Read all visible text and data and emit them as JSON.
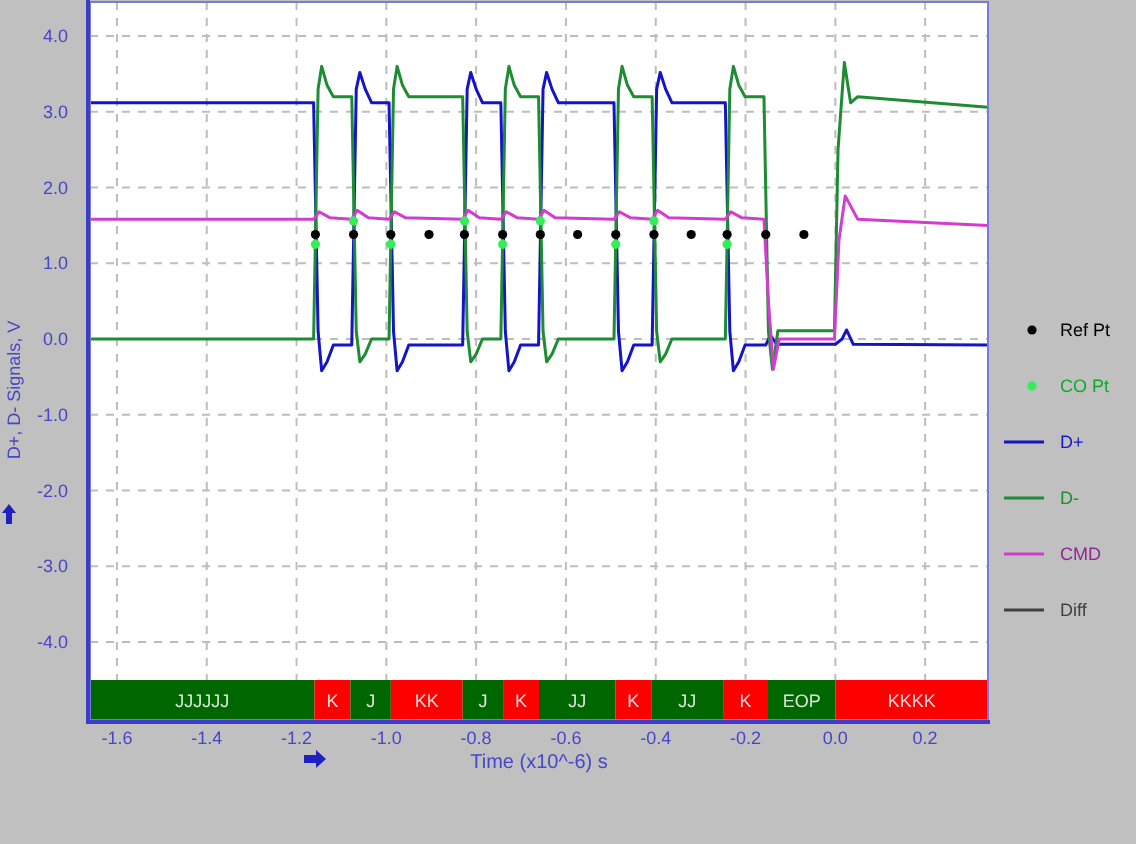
{
  "chart_data": {
    "type": "line",
    "xlabel": "Time (x10^-6) s",
    "ylabel": "D+, D- Signals, V",
    "xlim": [
      -1.66,
      0.34
    ],
    "ylim": [
      -5.03,
      4.45
    ],
    "xticks": [
      -1.6,
      -1.4,
      -1.2,
      {
        "value": -1,
        "label": "-1.0"
      },
      -0.8,
      -0.6,
      -0.4,
      -0.2,
      {
        "value": 0,
        "label": "0.0"
      },
      0.2
    ],
    "yticks": [
      {
        "value": 4,
        "label": "4.0"
      },
      {
        "value": 3,
        "label": "3.0"
      },
      {
        "value": 2,
        "label": "2.0"
      },
      {
        "value": 1,
        "label": "1.0"
      },
      {
        "value": 0,
        "label": "0.0"
      },
      {
        "value": -1,
        "label": "-1.0"
      },
      {
        "value": -2,
        "label": "-2.0"
      },
      {
        "value": -3,
        "label": "-3.0"
      },
      {
        "value": -4,
        "label": "-4.0"
      }
    ],
    "grid": true,
    "legend": "right",
    "bands": [
      {
        "axis": "x",
        "from": -1.66,
        "to": -1.16,
        "label": "JJJJJJ",
        "color": "#006600"
      },
      {
        "axis": "x",
        "from": -1.16,
        "to": -1.08,
        "label": "K",
        "color": "#ff0000"
      },
      {
        "axis": "x",
        "from": -1.08,
        "to": -0.99,
        "label": "J",
        "color": "#006600"
      },
      {
        "axis": "x",
        "from": -0.99,
        "to": -0.83,
        "label": "KK",
        "color": "#ff0000"
      },
      {
        "axis": "x",
        "from": -0.83,
        "to": -0.74,
        "label": "J",
        "color": "#006600"
      },
      {
        "axis": "x",
        "from": -0.74,
        "to": -0.66,
        "label": "K",
        "color": "#ff0000"
      },
      {
        "axis": "x",
        "from": -0.66,
        "to": -0.49,
        "label": "JJ",
        "color": "#006600"
      },
      {
        "axis": "x",
        "from": -0.49,
        "to": -0.41,
        "label": "K",
        "color": "#ff0000"
      },
      {
        "axis": "x",
        "from": -0.41,
        "to": -0.25,
        "label": "JJ",
        "color": "#006600"
      },
      {
        "axis": "x",
        "from": -0.25,
        "to": -0.15,
        "label": "K",
        "color": "#ff0000"
      },
      {
        "axis": "x",
        "from": -0.15,
        "to": 0.0,
        "label": "EOP",
        "color": "#006600"
      },
      {
        "axis": "x",
        "from": 0.0,
        "to": 0.34,
        "label": "KKKK",
        "color": "#ff0000"
      }
    ],
    "series": [
      {
        "name": "Ref Pt",
        "type": "scatter",
        "marker": "circle",
        "color": "#000000",
        "x": [
          -1.158,
          -1.073,
          -0.99,
          -0.905,
          -0.826,
          -0.741,
          -0.657,
          -0.574,
          -0.489,
          -0.404,
          -0.321,
          -0.241,
          -0.155,
          -0.07
        ],
        "values": [
          1.38,
          1.38,
          1.38,
          1.38,
          1.38,
          1.38,
          1.38,
          1.38,
          1.38,
          1.38,
          1.38,
          1.38,
          1.38,
          1.38
        ]
      },
      {
        "name": "CO Pt",
        "type": "scatter",
        "marker": "circle",
        "color": "#33ee55",
        "x": [
          -1.158,
          -1.073,
          -0.99,
          -0.826,
          -0.741,
          -0.657,
          -0.489,
          -0.404,
          -0.241
        ],
        "values": [
          1.25,
          1.56,
          1.25,
          1.56,
          1.25,
          1.56,
          1.25,
          1.56,
          1.25
        ]
      },
      {
        "name": "D+",
        "color": "#1414c8",
        "x": [
          -1.66,
          -1.162,
          -1.152,
          -1.144,
          -1.132,
          -1.118,
          -1.077,
          -1.067,
          -1.059,
          -1.047,
          -1.033,
          -0.994,
          -0.984,
          -0.976,
          -0.964,
          -0.95,
          -0.83,
          -0.82,
          -0.812,
          -0.8,
          -0.786,
          -0.745,
          -0.735,
          -0.727,
          -0.715,
          -0.701,
          -0.661,
          -0.651,
          -0.643,
          -0.631,
          -0.617,
          -0.493,
          -0.483,
          -0.475,
          -0.463,
          -0.449,
          -0.408,
          -0.398,
          -0.39,
          -0.378,
          -0.364,
          -0.245,
          -0.235,
          -0.227,
          -0.215,
          -0.201,
          -0.155,
          -0.145,
          -0.13,
          0.0,
          0.015,
          0.025,
          0.04,
          0.34
        ],
        "values": [
          3.12,
          3.12,
          0.1,
          -0.42,
          -0.3,
          -0.08,
          -0.08,
          3.3,
          3.52,
          3.3,
          3.12,
          3.12,
          0.1,
          -0.42,
          -0.3,
          -0.08,
          -0.08,
          3.3,
          3.52,
          3.3,
          3.12,
          3.12,
          0.1,
          -0.42,
          -0.3,
          -0.08,
          -0.08,
          3.3,
          3.52,
          3.3,
          3.12,
          3.12,
          0.1,
          -0.42,
          -0.3,
          -0.08,
          -0.08,
          3.3,
          3.52,
          3.3,
          3.12,
          3.12,
          0.1,
          -0.42,
          -0.3,
          -0.08,
          -0.08,
          0.05,
          -0.07,
          -0.07,
          0.0,
          0.12,
          -0.07,
          -0.08
        ]
      },
      {
        "name": "D-",
        "color": "#1e8c32",
        "x": [
          -1.66,
          -1.162,
          -1.152,
          -1.144,
          -1.132,
          -1.118,
          -1.077,
          -1.067,
          -1.059,
          -1.047,
          -1.033,
          -0.994,
          -0.984,
          -0.976,
          -0.964,
          -0.95,
          -0.83,
          -0.82,
          -0.812,
          -0.8,
          -0.786,
          -0.745,
          -0.735,
          -0.727,
          -0.715,
          -0.701,
          -0.661,
          -0.651,
          -0.643,
          -0.631,
          -0.617,
          -0.493,
          -0.483,
          -0.475,
          -0.463,
          -0.449,
          -0.408,
          -0.398,
          -0.39,
          -0.378,
          -0.364,
          -0.245,
          -0.235,
          -0.227,
          -0.215,
          -0.201,
          -0.159,
          -0.149,
          -0.14,
          -0.128,
          -0.002,
          0.006,
          0.02,
          0.034,
          0.05,
          0.34
        ],
        "values": [
          0.0,
          0.0,
          3.3,
          3.6,
          3.35,
          3.2,
          3.2,
          0.1,
          -0.3,
          -0.2,
          0.0,
          0.0,
          3.3,
          3.6,
          3.35,
          3.2,
          3.2,
          0.1,
          -0.3,
          -0.2,
          0.0,
          0.0,
          3.3,
          3.6,
          3.35,
          3.2,
          3.2,
          0.1,
          -0.3,
          -0.2,
          0.0,
          0.0,
          3.3,
          3.6,
          3.35,
          3.2,
          3.2,
          0.1,
          -0.3,
          -0.2,
          0.0,
          0.0,
          3.3,
          3.6,
          3.35,
          3.2,
          3.2,
          0.1,
          -0.4,
          0.11,
          0.11,
          2.5,
          3.65,
          3.12,
          3.2,
          3.06
        ]
      },
      {
        "name": "CMD",
        "color": "#d23cd2",
        "x": [
          -1.66,
          -1.162,
          -1.15,
          -1.125,
          -1.077,
          -1.065,
          -1.04,
          -0.994,
          -0.982,
          -0.957,
          -0.83,
          -0.818,
          -0.793,
          -0.745,
          -0.733,
          -0.708,
          -0.661,
          -0.649,
          -0.624,
          -0.493,
          -0.481,
          -0.456,
          -0.408,
          -0.396,
          -0.371,
          -0.245,
          -0.233,
          -0.208,
          -0.159,
          -0.149,
          -0.138,
          -0.125,
          -0.002,
          0.008,
          0.022,
          0.05,
          0.34
        ],
        "values": [
          1.58,
          1.58,
          1.68,
          1.6,
          1.58,
          1.7,
          1.6,
          1.58,
          1.68,
          1.6,
          1.58,
          1.7,
          1.6,
          1.58,
          1.68,
          1.6,
          1.58,
          1.7,
          1.6,
          1.58,
          1.68,
          1.6,
          1.58,
          1.7,
          1.6,
          1.58,
          1.68,
          1.6,
          1.58,
          0.5,
          -0.4,
          0.0,
          0.0,
          1.3,
          1.89,
          1.58,
          1.5
        ]
      },
      {
        "name": "Diff",
        "color": "#404040"
      }
    ]
  }
}
